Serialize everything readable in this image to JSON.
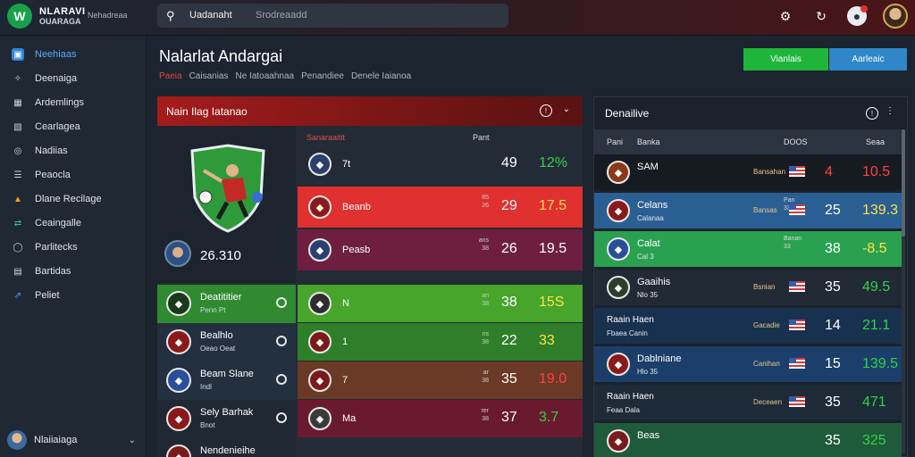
{
  "topbar": {
    "brand_line1": "NLARAVI",
    "brand_line2": "OUARAGA",
    "brand_sub": "Nehadreaa",
    "search_query": "Uadanaht",
    "search_hint": "Srodreaadd",
    "icons": [
      "settings-icon",
      "refresh-icon",
      "notifications-icon"
    ]
  },
  "sidebar": {
    "items": [
      {
        "label": "Neehiaas",
        "icon": "monitor-icon",
        "active": true
      },
      {
        "label": "Deenaiga",
        "icon": "bird-icon"
      },
      {
        "label": "Ardemlings",
        "icon": "grid-icon"
      },
      {
        "label": "Cearlagea",
        "icon": "image-icon"
      },
      {
        "label": "Nadiias",
        "icon": "circle-icon"
      },
      {
        "label": "Peaocla",
        "icon": "list-icon"
      },
      {
        "label": "Dlane Recilage",
        "icon": "triangle-icon"
      },
      {
        "label": "Ceaingalle",
        "icon": "shuffle-icon"
      },
      {
        "label": "Parlitecks",
        "icon": "ring-icon"
      },
      {
        "label": "Bartidas",
        "icon": "gallery-icon"
      },
      {
        "label": "Peliet",
        "icon": "link-icon"
      }
    ],
    "user": "Nlaiiaiaga"
  },
  "header": {
    "title": "Nalarlat Andargai",
    "subnav": [
      "Paeia",
      "Caisanias",
      "Ne Iatoaahnaa",
      "Penandiee",
      "Denele Iaianoa"
    ],
    "btn_green": "Vianlais",
    "btn_blue": "Aarleaic"
  },
  "left_panel": {
    "title": "Nain Ilag Iatanao",
    "hero_score": "26.310",
    "match_head_left": "Sanaraaitit",
    "match_head_right": "Pant",
    "matches": [
      {
        "name": "7t",
        "tiny": "",
        "n1": "49",
        "n2": "12%",
        "n2_color": "#32d24a",
        "bg": "#232b36",
        "crest": "#2b3f6b"
      },
      {
        "name": "Beanb",
        "tiny": "85\n26",
        "n1": "29",
        "n2": "17.5",
        "n2_color": "#ffe24a",
        "bg": "#e03030",
        "crest": "#8a1a1a"
      },
      {
        "name": "Peasb",
        "tiny": "ans\n38",
        "n1": "26",
        "n2": "19.5",
        "n2_color": "#ffffff",
        "bg": "#6e1f3f",
        "crest": "#2a3f72"
      },
      {
        "name": "N",
        "tiny": "an\n38",
        "n1": "38",
        "n2": "15S",
        "n2_color": "#ffe24a",
        "bg": "#46a52a",
        "crest": "#2d2d2d"
      },
      {
        "name": "1",
        "tiny": "ns\n38",
        "n1": "22",
        "n2": "33",
        "n2_color": "#ffe24a",
        "bg": "#2f7f2a",
        "crest": "#7a1a1a"
      },
      {
        "name": "7",
        "tiny": "ar\n38",
        "n1": "35",
        "n2": "19.0",
        "n2_color": "#ff4040",
        "bg": "#6a3a26",
        "crest": "#7a1a1a"
      },
      {
        "name": "Ma",
        "tiny": "rer\n38",
        "n1": "37",
        "n2": "3.7",
        "n2_color": "#32d24a",
        "bg": "#6a1a2e",
        "crest": "#3a3a3a"
      }
    ],
    "league": [
      {
        "name": "Deatititier",
        "sub": "Penn Pt",
        "bg": "#2f8a30",
        "crest": "#1a3a1a"
      },
      {
        "name": "Bealhlo",
        "sub": "Oeao Oeat",
        "bg": "#233040",
        "crest": "#8a1a1a"
      },
      {
        "name": "Beam Slane",
        "sub": "Indl",
        "bg": "#233040",
        "crest": "#2a4f9a"
      },
      {
        "name": "Sely Barhak",
        "sub": "Bnot",
        "bg": "#202833",
        "crest": "#8a1a1a"
      },
      {
        "name": "Nendenieihe",
        "sub": "",
        "bg": "#202833",
        "crest": "#7a1a1a"
      }
    ]
  },
  "right_panel": {
    "title": "Denailive",
    "cols": {
      "c1": "Pani",
      "c2": "Banka",
      "c3": "DOOS",
      "c4": "Seaa"
    },
    "rows": [
      {
        "tl": "SAM",
        "tl2": "",
        "lab": "Bansahan",
        "mini": "",
        "n1": "4",
        "n1_color": "#ff4040",
        "n2": "10.5",
        "n2_color": "#ff4040",
        "bg": "#161b22",
        "crest": "#8a3a1a",
        "extra": "",
        "extra2": ""
      },
      {
        "tl": "Celans",
        "tl2": "Calanaa",
        "lab": "Bansas",
        "mini": "Pan\n33",
        "n1": "25",
        "n1_color": "#ffffff",
        "n2": "139.3",
        "n2_color": "#ffe24a",
        "bg": "#2a5f93",
        "crest": "#8a1a1a",
        "extra": "",
        "extra2": ""
      },
      {
        "tl": "Calat",
        "tl2": "Cal 3",
        "lab": "",
        "mini": "Banan\n33",
        "n1": "38",
        "n1_color": "#ffffff",
        "n2": "-8.5",
        "n2_color": "#ffe24a",
        "bg": "#2aa150",
        "crest": "#2a4f9a",
        "extra": "",
        "extra2": ""
      },
      {
        "tl": "Gaaihis",
        "tl2": "Nlo 35",
        "lab": "Bsnian",
        "mini": "",
        "n1": "35",
        "n1_color": "#ffffff",
        "n2": "49.5",
        "n2_color": "#32d24a",
        "bg": "#212a35",
        "crest": "#2a3f2a",
        "extra": "",
        "extra2": ""
      },
      {
        "tl": "",
        "tl2": "",
        "lab": "Gacadie",
        "mini": "",
        "n1": "14",
        "n1_color": "#ffffff",
        "n2": "21.1",
        "n2_color": "#32d24a",
        "bg": "#18314f",
        "crest": "",
        "extra": "Raain Haen",
        "extra2": "Fbaea Canin"
      },
      {
        "tl": "Dablniane",
        "tl2": "Hlo 35",
        "lab": "Canihan",
        "mini": "",
        "n1": "15",
        "n1_color": "#ffffff",
        "n2": "139.5",
        "n2_color": "#32d24a",
        "bg": "#1b3f6a",
        "crest": "#8a1a1a",
        "extra": "",
        "extra2": ""
      },
      {
        "tl": "",
        "tl2": "",
        "lab": "Deceaen",
        "mini": "",
        "n1": "35",
        "n1_color": "#ffffff",
        "n2": "471",
        "n2_color": "#32d24a",
        "bg": "#1d2a38",
        "crest": "",
        "extra": "Raain Haen",
        "extra2": "Feaa Dala"
      },
      {
        "tl": "Beas",
        "tl2": "",
        "lab": "",
        "mini": "",
        "n1": "35",
        "n1_color": "#ffffff",
        "n2": "325",
        "n2_color": "#32d24a",
        "bg": "#1f5a3a",
        "crest": "#7a1a1a",
        "extra": "",
        "extra2": ""
      }
    ]
  }
}
